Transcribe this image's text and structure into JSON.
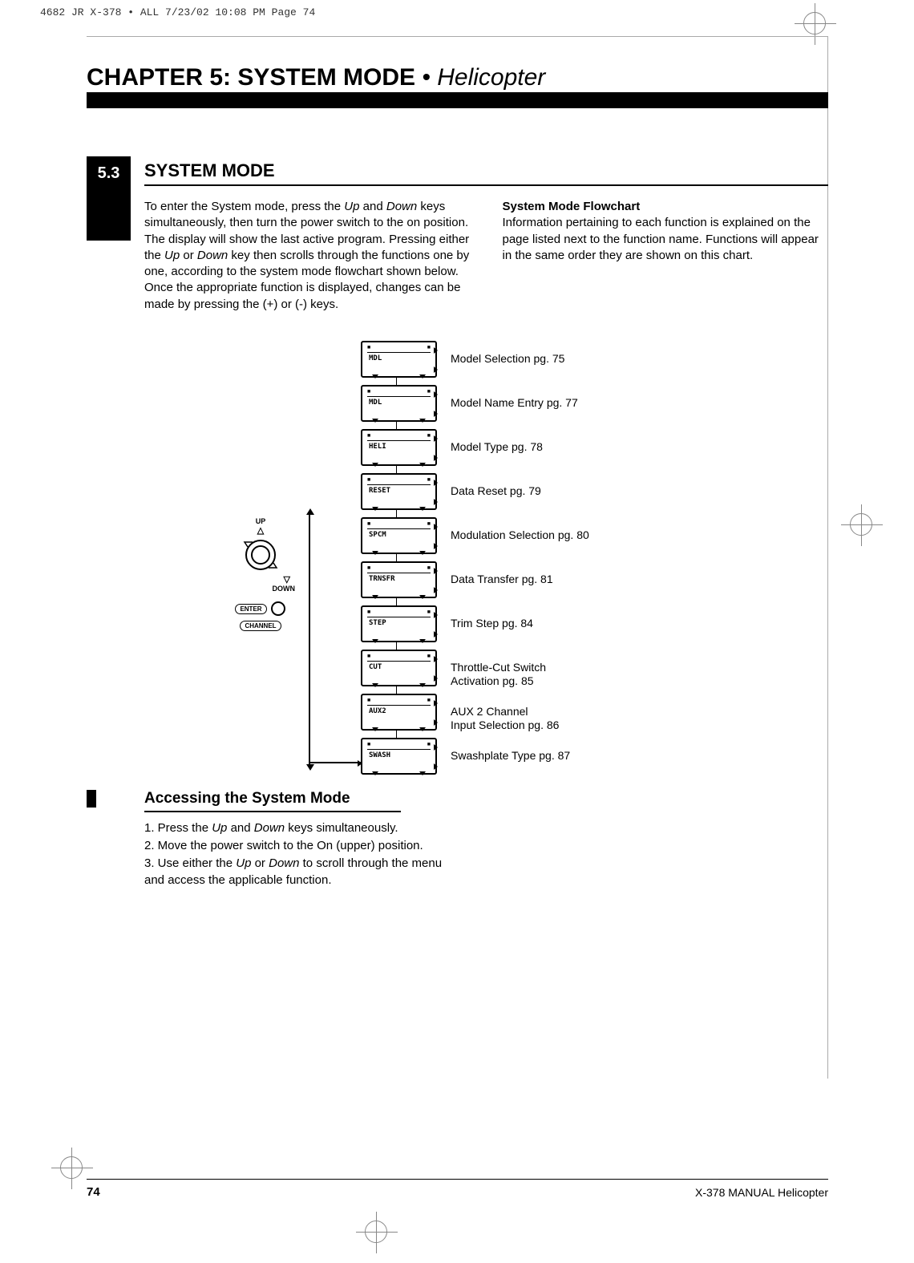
{
  "print_header": "4682 JR X-378 • ALL  7/23/02  10:08 PM  Page 74",
  "chapter": {
    "prefix": "CHAPTER 5: SYSTEM MODE",
    "suffix": " • Helicopter"
  },
  "section": {
    "number": "5.3",
    "title": "SYSTEM MODE"
  },
  "body": {
    "col1": "To enter the System mode, press the <em>Up</em> and <em>Down</em> keys simultaneously, then turn the power switch to the on position. The display will show the last active program. Pressing either the <em>Up</em> or <em>Down</em> key then scrolls through the functions one by one, according to the system mode flowchart shown below. Once the appropriate function is displayed, changes can be made by pressing the (+) or (-) keys.",
    "col2": "<strong>System Mode Flowchart</strong><br>Information pertaining to each function is explained on the page listed next to the function name. Functions will appear in the same order they are shown on this chart."
  },
  "nav": {
    "up": "UP",
    "down": "DOWN",
    "enter": "ENTER",
    "channel": "CHANNEL"
  },
  "screens": [
    {
      "lcd": "MDL",
      "label": "Model Selection pg. 75"
    },
    {
      "lcd": "MDL",
      "label": "Model Name Entry pg. 77"
    },
    {
      "lcd": "HELI",
      "label": "Model Type pg. 78"
    },
    {
      "lcd": "RESET",
      "label": "Data Reset pg. 79"
    },
    {
      "lcd": "SPCM",
      "label": "Modulation Selection pg. 80"
    },
    {
      "lcd": "TRNSFR",
      "label": "Data Transfer pg. 81"
    },
    {
      "lcd": "STEP",
      "label": "Trim Step pg. 84"
    },
    {
      "lcd": "CUT",
      "label": "Throttle-Cut Switch<br>Activation pg. 85"
    },
    {
      "lcd": "AUX2",
      "label": "AUX 2 Channel<br>Input Selection pg. 86"
    },
    {
      "lcd": "SWASH",
      "label": "Swashplate Type pg. 87"
    }
  ],
  "subheading": "Accessing the System Mode",
  "steps": "1. Press the <em>Up</em> and <em>Down</em> keys simultaneously.<br>2. Move the power switch to the On (upper) position.<br>3. Use either the <em>Up</em> or <em>Down</em> to scroll through the menu and access the applicable function.",
  "page_num": "74",
  "footer_right": "X-378 MANUAL   Helicopter"
}
